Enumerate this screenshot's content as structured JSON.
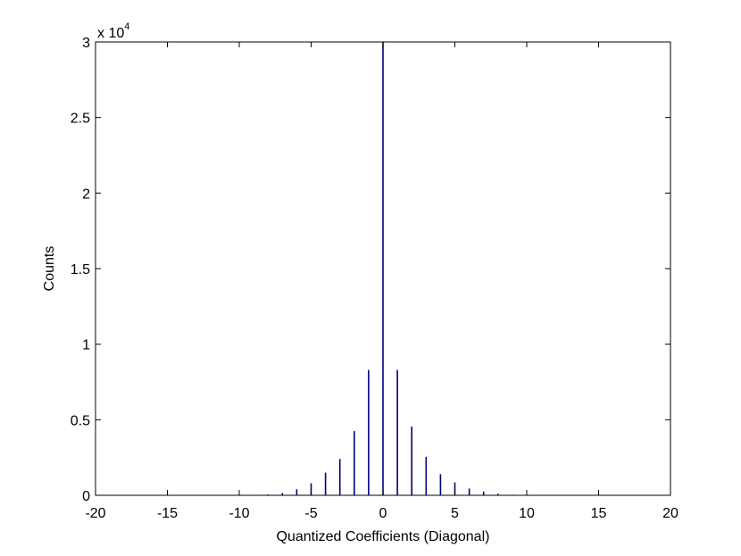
{
  "chart_data": {
    "type": "bar",
    "xlabel": "Quantized Coefficients (Diagonal)",
    "ylabel": "Counts",
    "exponent_label": {
      "base": "x 10",
      "power": "4"
    },
    "xlim": [
      -20,
      20
    ],
    "ylim": [
      0,
      30000
    ],
    "xticks": [
      "-20",
      "-15",
      "-10",
      "-5",
      "0",
      "5",
      "10",
      "15",
      "20"
    ],
    "xtick_values": [
      -20,
      -15,
      -10,
      -5,
      0,
      5,
      10,
      15,
      20
    ],
    "yticks": [
      "0",
      "0.5",
      "1",
      "1.5",
      "2",
      "2.5",
      "3"
    ],
    "ytick_values": [
      0,
      5000,
      10000,
      15000,
      20000,
      25000,
      30000
    ],
    "grid": false,
    "bar_color": "#00007f",
    "x": [
      -9,
      -8,
      -7,
      -6,
      -5,
      -4,
      -3,
      -2,
      -1,
      0,
      1,
      2,
      3,
      4,
      5,
      6,
      7,
      8,
      9
    ],
    "values": [
      20,
      60,
      150,
      400,
      800,
      1500,
      2400,
      4250,
      8300,
      30000,
      8300,
      4550,
      2550,
      1400,
      850,
      450,
      250,
      100,
      40
    ]
  }
}
